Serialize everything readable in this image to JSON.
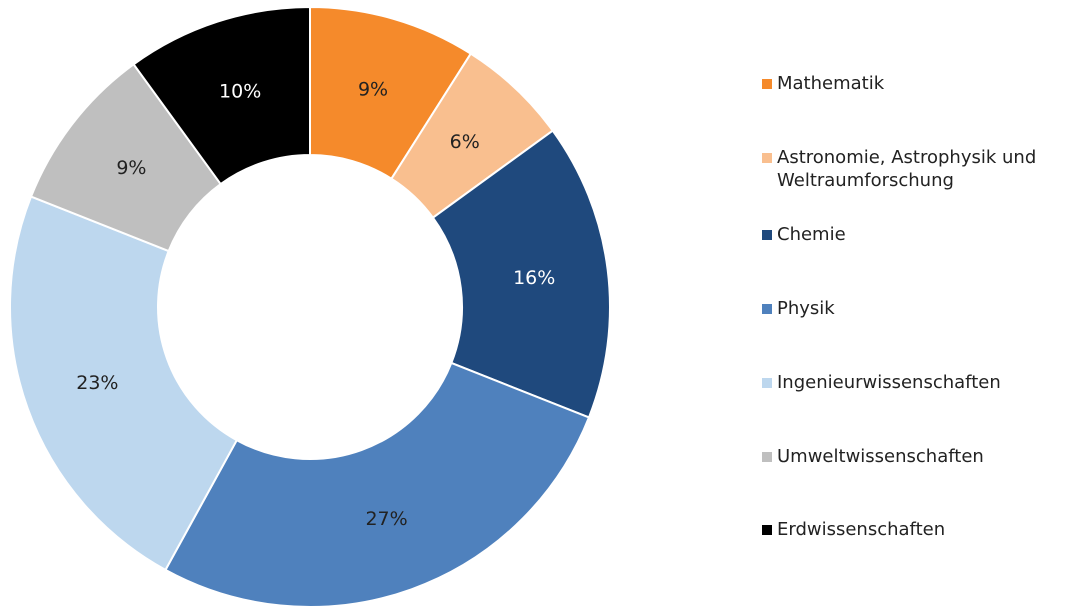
{
  "chart_data": {
    "type": "donut",
    "categories": [
      "Mathematik",
      "Astronomie, Astrophysik und Weltraumforschung",
      "Chemie",
      "Physik",
      "Ingenieurwissenschaften",
      "Umweltwissenschaften",
      "Erdwissenschaften"
    ],
    "values": [
      9,
      6,
      16,
      27,
      23,
      9,
      10
    ],
    "value_labels": [
      "9%",
      "6%",
      "16%",
      "27%",
      "23%",
      "9%",
      "10%"
    ],
    "colors": [
      "#f58a2b",
      "#f9bf8f",
      "#1f497d",
      "#4f81bd",
      "#bdd7ee",
      "#bfbfbf",
      "#000000"
    ],
    "legend": "right"
  }
}
